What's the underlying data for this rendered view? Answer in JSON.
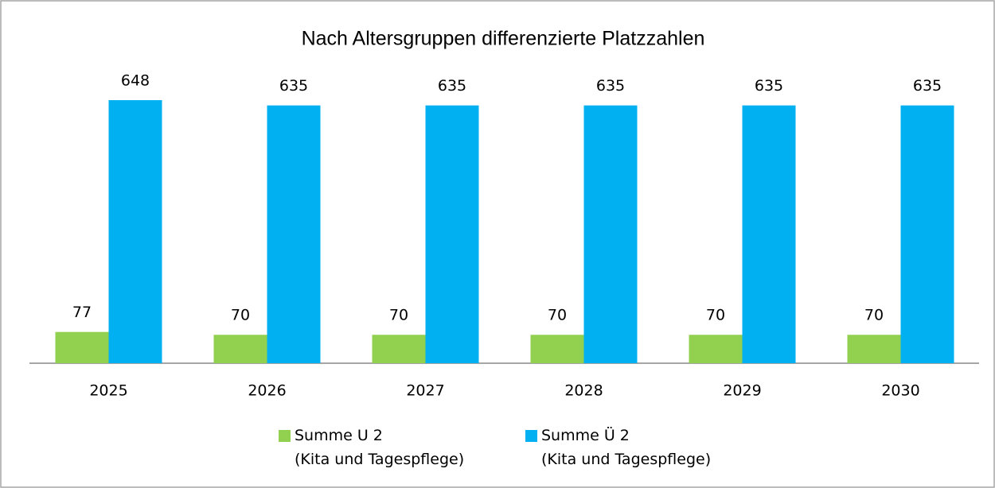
{
  "chart_data": {
    "type": "bar",
    "title": "Nach Altersgruppen differenzierte Platzzahlen",
    "categories": [
      "2025",
      "2026",
      "2027",
      "2028",
      "2029",
      "2030"
    ],
    "series": [
      {
        "name": "Summe U 2\n(Kita und Tagespflege)",
        "color": "#92d050",
        "values": [
          77,
          70,
          70,
          70,
          70,
          70
        ]
      },
      {
        "name": "Summe Ü 2\n(Kita und Tagespflege)",
        "color": "#00b0f0",
        "values": [
          648,
          635,
          635,
          635,
          635,
          635
        ]
      }
    ],
    "legend": "bottom"
  }
}
